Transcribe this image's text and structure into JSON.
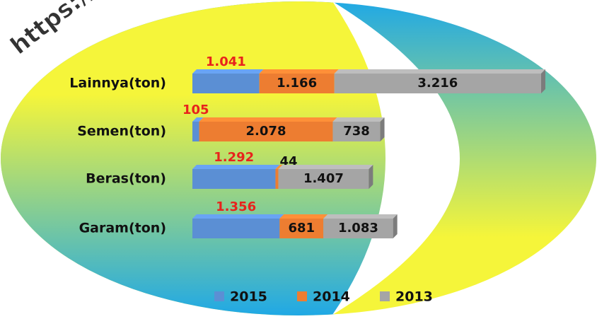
{
  "chart_data": {
    "type": "bar",
    "orientation": "horizontal",
    "stacked": true,
    "watermark": "https://j",
    "categories": [
      "Lainnya(ton)",
      "Semen(ton)",
      "Beras(ton)",
      "Garam(ton)"
    ],
    "series": [
      {
        "name": "2015",
        "color": "#5b8fd4",
        "values": [
          1041,
          105,
          1292,
          1356
        ],
        "value_labels": [
          "1.041",
          "105",
          "1.292",
          "1.356"
        ]
      },
      {
        "name": "2014",
        "color": "#ed7d31",
        "values": [
          1166,
          2078,
          44,
          681
        ],
        "value_labels": [
          "1.166",
          "2.078",
          "44",
          "681"
        ]
      },
      {
        "name": "2013",
        "color": "#a5a5a5",
        "values": [
          3216,
          738,
          1407,
          1083
        ],
        "value_labels": [
          "3.216",
          "738",
          "1.407",
          "1.083"
        ]
      }
    ],
    "legend": "bottom"
  }
}
